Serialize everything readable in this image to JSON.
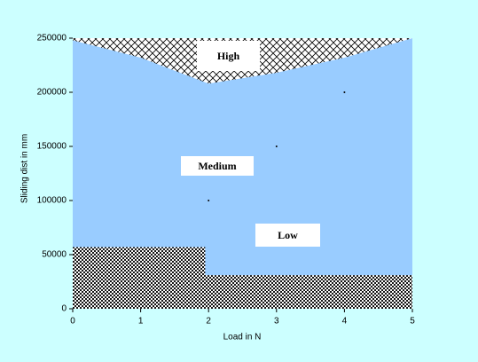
{
  "chart_data": {
    "type": "area",
    "xlabel": "Load in N",
    "ylabel": "Sliding dist in mm",
    "xlim": [
      0,
      5
    ],
    "ylim": [
      0,
      250000
    ],
    "xticks": [
      0,
      1,
      2,
      3,
      4,
      5
    ],
    "yticks": [
      0,
      50000,
      100000,
      150000,
      200000,
      250000
    ],
    "regions": [
      {
        "name": "Low",
        "color": "#000000",
        "pattern": "dots",
        "x": [
          0,
          1.95,
          1.95,
          5
        ],
        "values": [
          57000,
          57000,
          31000,
          31000
        ]
      },
      {
        "name": "Medium",
        "color": "#99ccff",
        "pattern": "solid",
        "x": [
          0,
          1,
          2,
          3,
          4,
          5
        ],
        "values": [
          248000,
          232000,
          208000,
          218000,
          232000,
          250000
        ]
      },
      {
        "name": "High",
        "color": "#000000",
        "pattern": "hatch"
      }
    ],
    "points": {
      "x": [
        2,
        3,
        4
      ],
      "values": [
        100000,
        150000,
        200000
      ],
      "color": "#000000"
    }
  }
}
